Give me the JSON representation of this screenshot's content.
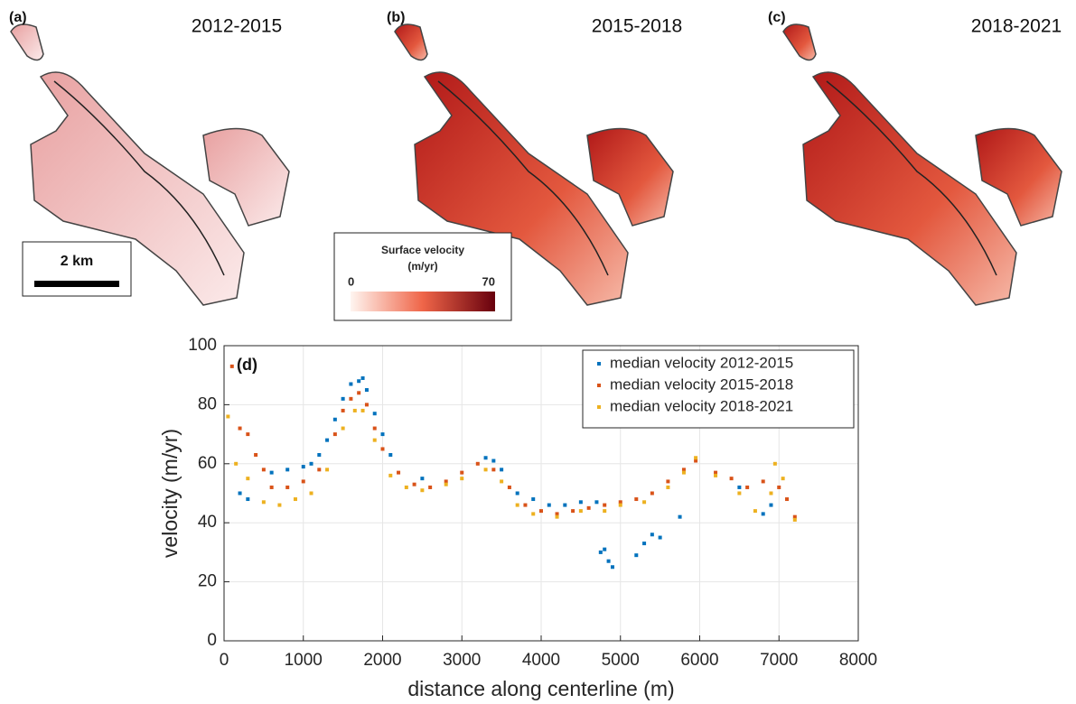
{
  "panels": [
    {
      "label": "(a)",
      "period": "2012-2015"
    },
    {
      "label": "(b)",
      "period": "2015-2018"
    },
    {
      "label": "(c)",
      "period": "2018-2021"
    }
  ],
  "scale_bar": "2 km",
  "colorbar": {
    "title_lines": [
      "Surface velocity",
      "(m/yr)"
    ],
    "min": 0,
    "max": 70
  },
  "chart_data": {
    "type": "scatter",
    "label": "(d)",
    "x_label": "distance along centerline (m)",
    "y_label": "velocity (m/yr)",
    "xlim": [
      0,
      8000
    ],
    "ylim": [
      0,
      100
    ],
    "xticks": [
      0,
      1000,
      2000,
      3000,
      4000,
      5000,
      6000,
      7000,
      8000
    ],
    "yticks": [
      0,
      20,
      40,
      60,
      80,
      100
    ],
    "grid": true,
    "legend": "upper right",
    "series": [
      {
        "name": "median velocity 2012-2015",
        "color": "#0072bd",
        "x": [
          200,
          300,
          600,
          800,
          1000,
          1100,
          1200,
          1300,
          1400,
          1500,
          1600,
          1700,
          1750,
          1800,
          1900,
          2000,
          2100,
          2500,
          3300,
          3400,
          3500,
          3700,
          3900,
          4100,
          4300,
          4500,
          4700,
          4750,
          4800,
          4850,
          4900,
          5200,
          5300,
          5400,
          5500,
          5750,
          6500,
          6800,
          6900
        ],
        "values": [
          50,
          48,
          57,
          58,
          59,
          60,
          63,
          68,
          75,
          82,
          87,
          88,
          89,
          85,
          77,
          70,
          63,
          55,
          62,
          61,
          58,
          50,
          48,
          46,
          46,
          47,
          47,
          30,
          31,
          27,
          25,
          29,
          33,
          36,
          35,
          42,
          52,
          43,
          46
        ]
      },
      {
        "name": "median velocity 2015-2018",
        "color": "#d95319",
        "x": [
          100,
          200,
          300,
          400,
          500,
          600,
          800,
          1000,
          1200,
          1400,
          1500,
          1600,
          1700,
          1800,
          1900,
          2000,
          2200,
          2400,
          2600,
          2800,
          3000,
          3200,
          3400,
          3600,
          3800,
          4000,
          4200,
          4400,
          4600,
          4800,
          5000,
          5200,
          5400,
          5600,
          5800,
          5950,
          6200,
          6400,
          6600,
          6800,
          7000,
          7100,
          7200
        ],
        "values": [
          93,
          72,
          70,
          63,
          58,
          52,
          52,
          54,
          58,
          70,
          78,
          82,
          84,
          80,
          72,
          65,
          57,
          53,
          52,
          54,
          57,
          60,
          58,
          52,
          46,
          44,
          43,
          44,
          45,
          46,
          47,
          48,
          50,
          54,
          58,
          61,
          57,
          55,
          52,
          54,
          52,
          48,
          42
        ]
      },
      {
        "name": "median velocity 2018-2021",
        "color": "#edb120",
        "x": [
          50,
          150,
          300,
          500,
          700,
          900,
          1100,
          1300,
          1500,
          1650,
          1750,
          1900,
          2100,
          2300,
          2500,
          2800,
          3000,
          3300,
          3500,
          3700,
          3900,
          4200,
          4500,
          4800,
          5000,
          5300,
          5600,
          5800,
          5950,
          6200,
          6500,
          6700,
          6900,
          6950,
          7050,
          7200
        ],
        "values": [
          76,
          60,
          55,
          47,
          46,
          48,
          50,
          58,
          72,
          78,
          78,
          68,
          56,
          52,
          51,
          53,
          55,
          58,
          54,
          46,
          43,
          42,
          44,
          44,
          46,
          47,
          52,
          57,
          62,
          56,
          50,
          44,
          50,
          60,
          55,
          41
        ]
      }
    ]
  }
}
